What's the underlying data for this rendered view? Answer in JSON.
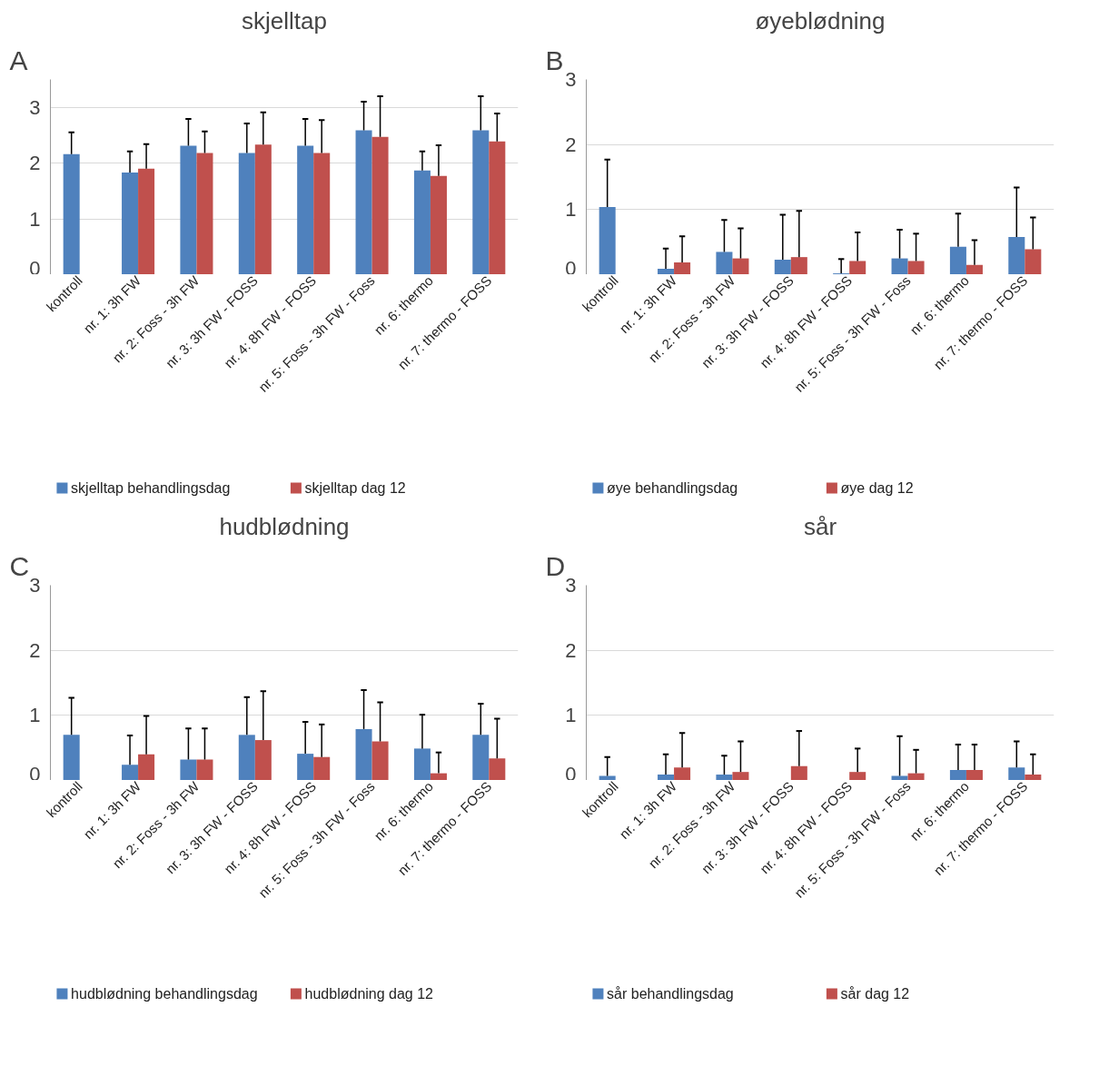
{
  "chart_data": [
    {
      "type": "bar",
      "title": "skjelltap",
      "annotations": [
        "A"
      ],
      "categories": [
        "kontroll",
        "nr. 1: 3h FW",
        "nr. 2: Foss - 3h FW",
        "nr. 3: 3h FW - FOSS",
        "nr. 4: 8h FW - FOSS",
        "nr. 5: Foss - 3h FW - Foss",
        "nr. 6: thermo",
        "nr. 7: thermo - FOSS"
      ],
      "ylim": [
        0,
        3.5
      ],
      "yticks": [
        0,
        1,
        2,
        3
      ],
      "grid": "y",
      "legend": "bottom",
      "series": [
        {
          "name": "skjelltap behandlingsdag",
          "color": "#4f81bd",
          "values": [
            2.16,
            1.83,
            2.31,
            2.18,
            2.31,
            2.59,
            1.87,
            2.59
          ],
          "errors": [
            [
              2.16,
              2.55
            ],
            [
              1.83,
              2.21
            ],
            [
              2.31,
              2.79
            ],
            [
              2.18,
              2.71
            ],
            [
              2.31,
              2.79
            ],
            [
              2.59,
              3.1
            ],
            [
              1.87,
              2.21
            ],
            [
              2.59,
              3.2
            ]
          ]
        },
        {
          "name": "skjelltap dag 12",
          "color": "#c0504d",
          "values": [
            null,
            1.9,
            2.18,
            2.33,
            2.18,
            2.47,
            1.77,
            2.39
          ],
          "errors": [
            null,
            [
              1.9,
              2.34
            ],
            [
              2.18,
              2.57
            ],
            [
              2.33,
              2.91
            ],
            [
              2.18,
              2.77
            ],
            [
              2.47,
              3.2
            ],
            [
              1.77,
              2.32
            ],
            [
              2.39,
              2.89
            ]
          ]
        }
      ]
    },
    {
      "type": "bar",
      "title": "øyeblødning",
      "annotations": [
        "B"
      ],
      "categories": [
        "kontroll",
        "nr. 1: 3h FW",
        "nr. 2: Foss - 3h FW",
        "nr. 3: 3h FW - FOSS",
        "nr. 4: 8h FW - FOSS",
        "nr. 5: Foss - 3h FW - Foss",
        "nr. 6: thermo",
        "nr. 7: thermo - FOSS"
      ],
      "ylim": [
        0,
        3
      ],
      "yticks": [
        0,
        1,
        2,
        3
      ],
      "grid": "y",
      "legend": "bottom",
      "series": [
        {
          "name": "øye behandlingsdag",
          "color": "#4f81bd",
          "values": [
            1.04,
            0.09,
            0.35,
            0.23,
            0.02,
            0.25,
            0.43,
            0.58
          ],
          "errors": [
            [
              1.04,
              1.77
            ],
            [
              0.09,
              0.4
            ],
            [
              0.35,
              0.84
            ],
            [
              0.23,
              0.92
            ],
            [
              0.02,
              0.24
            ],
            [
              0.25,
              0.69
            ],
            [
              0.43,
              0.94
            ],
            [
              0.58,
              1.34
            ]
          ]
        },
        {
          "name": "øye dag 12",
          "color": "#c0504d",
          "values": [
            null,
            0.19,
            0.25,
            0.27,
            0.21,
            0.21,
            0.15,
            0.39
          ],
          "errors": [
            null,
            [
              0.19,
              0.59
            ],
            [
              0.25,
              0.71
            ],
            [
              0.27,
              0.98
            ],
            [
              0.21,
              0.65
            ],
            [
              0.21,
              0.63
            ],
            [
              0.15,
              0.53
            ],
            [
              0.39,
              0.88
            ]
          ]
        }
      ]
    },
    {
      "type": "bar",
      "title": "hudblødning",
      "annotations": [
        "C"
      ],
      "categories": [
        "kontroll",
        "nr. 1: 3h FW",
        "nr. 2: Foss - 3h FW",
        "nr. 3: 3h FW - FOSS",
        "nr. 4: 8h FW - FOSS",
        "nr. 5: Foss - 3h FW - Foss",
        "nr. 6: thermo",
        "nr. 7: thermo - FOSS"
      ],
      "ylim": [
        0,
        3
      ],
      "yticks": [
        0,
        1,
        2,
        3
      ],
      "grid": "y",
      "legend": "bottom",
      "series": [
        {
          "name": "hudblødning behandlingsdag",
          "color": "#4f81bd",
          "values": [
            0.7,
            0.24,
            0.32,
            0.7,
            0.41,
            0.79,
            0.49,
            0.7
          ],
          "errors": [
            [
              0.7,
              1.27
            ],
            [
              0.24,
              0.69
            ],
            [
              0.32,
              0.8
            ],
            [
              0.7,
              1.28
            ],
            [
              0.41,
              0.9
            ],
            [
              0.79,
              1.39
            ],
            [
              0.49,
              1.01
            ],
            [
              0.7,
              1.18
            ]
          ]
        },
        {
          "name": "hudblødning dag 12",
          "color": "#c0504d",
          "values": [
            null,
            0.4,
            0.32,
            0.62,
            0.36,
            0.6,
            0.11,
            0.34
          ],
          "errors": [
            null,
            [
              0.4,
              0.99
            ],
            [
              0.32,
              0.8
            ],
            [
              0.62,
              1.37
            ],
            [
              0.36,
              0.86
            ],
            [
              0.6,
              1.2
            ],
            [
              0.11,
              0.43
            ],
            [
              0.34,
              0.95
            ]
          ]
        }
      ]
    },
    {
      "type": "bar",
      "title": "sår",
      "annotations": [
        "D"
      ],
      "categories": [
        "kontroll",
        "nr. 1: 3h FW",
        "nr. 2: Foss - 3h FW",
        "nr. 3: 3h FW - FOSS",
        "nr. 4: 8h FW - FOSS",
        "nr. 5: Foss - 3h FW - Foss",
        "nr. 6: thermo",
        "nr. 7: thermo - FOSS"
      ],
      "ylim": [
        0,
        3
      ],
      "yticks": [
        0,
        1,
        2,
        3
      ],
      "grid": "y",
      "legend": "bottom",
      "series": [
        {
          "name": "sår behandlingsdag",
          "color": "#4f81bd",
          "values": [
            0.07,
            0.09,
            0.09,
            null,
            null,
            0.07,
            0.16,
            0.2
          ],
          "errors": [
            [
              0.07,
              0.36
            ],
            [
              0.09,
              0.4
            ],
            [
              0.09,
              0.38
            ],
            null,
            null,
            [
              0.07,
              0.68
            ],
            [
              0.16,
              0.55
            ],
            [
              0.2,
              0.6
            ]
          ]
        },
        {
          "name": "sår dag 12",
          "color": "#c0504d",
          "values": [
            null,
            0.2,
            0.13,
            0.22,
            0.13,
            0.11,
            0.16,
            0.09
          ],
          "errors": [
            null,
            [
              0.2,
              0.73
            ],
            [
              0.13,
              0.6
            ],
            [
              0.22,
              0.76
            ],
            [
              0.13,
              0.49
            ],
            [
              0.11,
              0.47
            ],
            [
              0.16,
              0.55
            ],
            [
              0.09,
              0.4
            ]
          ]
        }
      ]
    }
  ]
}
